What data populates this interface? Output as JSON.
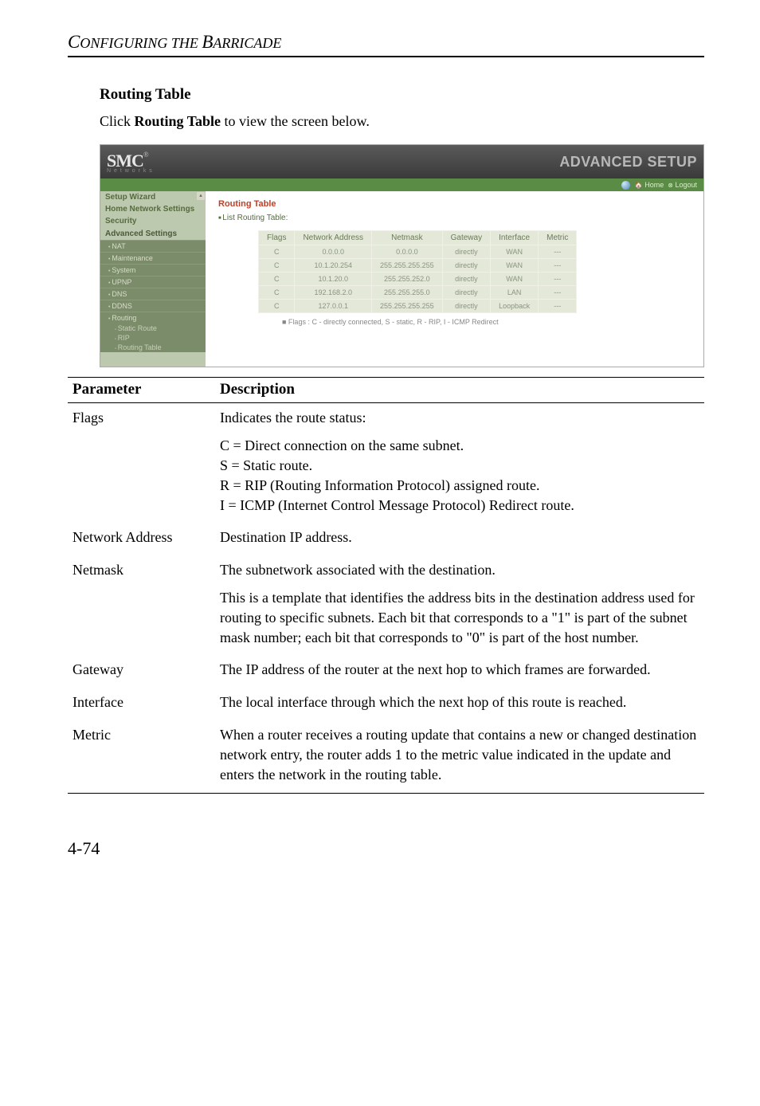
{
  "chapter_title_first": "C",
  "chapter_title_rest": "ONFIGURING THE ",
  "chapter_title_first2": "B",
  "chapter_title_rest2": "ARRICADE",
  "section_title": "Routing Table",
  "intro_prefix": "Click ",
  "intro_bold": "Routing Table",
  "intro_suffix": " to view the screen below.",
  "screenshot": {
    "logo": "SMC",
    "logo_reg": "®",
    "logo_sub": "N e t w o r k s",
    "adv": "ADVANCED SETUP",
    "top_home": "Home",
    "top_logout": "Logout",
    "sidebar": {
      "setup_wizard": "Setup Wizard",
      "home_net": "Home Network Settings",
      "security": "Security",
      "adv_settings": "Advanced Settings",
      "nat": "NAT",
      "maint": "Maintenance",
      "system": "System",
      "upnp": "UPNP",
      "dns": "DNS",
      "ddns": "DDNS",
      "routing": "Routing",
      "static_route": "Static Route",
      "rip": "RIP",
      "routing_table": "Routing Table"
    },
    "main": {
      "title": "Routing Table",
      "bullet": "List Routing Table:",
      "headers": [
        "Flags",
        "Network Address",
        "Netmask",
        "Gateway",
        "Interface",
        "Metric"
      ],
      "rows": [
        [
          "C",
          "0.0.0.0",
          "0.0.0.0",
          "directly",
          "WAN",
          "---"
        ],
        [
          "C",
          "10.1.20.254",
          "255.255.255.255",
          "directly",
          "WAN",
          "---"
        ],
        [
          "C",
          "10.1.20.0",
          "255.255.252.0",
          "directly",
          "WAN",
          "---"
        ],
        [
          "C",
          "192.168.2.0",
          "255.255.255.0",
          "directly",
          "LAN",
          "---"
        ],
        [
          "C",
          "127.0.0.1",
          "255.255.255.255",
          "directly",
          "Loopback",
          "---"
        ]
      ],
      "note": "■ Flags :  C - directly connected, S - static, R - RIP, I - ICMP Redirect"
    }
  },
  "ptable": {
    "h1": "Parameter",
    "h2": "Description",
    "rows": [
      {
        "param": "Flags",
        "desc1": "Indicates the route status:",
        "desc2": "C = Direct connection on the same subnet.\nS = Static route.\nR = RIP (Routing Information Protocol) assigned route.\nI = ICMP (Internet Control Message Protocol) Redirect route."
      },
      {
        "param": "Network Address",
        "desc1": "Destination IP address."
      },
      {
        "param": "Netmask",
        "desc1": "The subnetwork associated with the destination.",
        "desc2": "This is a template that identifies the address bits in the destination address used for routing to specific subnets. Each bit that corresponds to a \"1\" is part of the subnet mask number; each bit that corresponds to \"0\" is part of the host number."
      },
      {
        "param": "Gateway",
        "desc1": "The IP address of the router at the next hop to which frames are forwarded."
      },
      {
        "param": "Interface",
        "desc1": "The local interface through which the next hop of this route is reached."
      },
      {
        "param": "Metric",
        "desc1": "When a router receives a routing update that contains a new or changed destination network entry, the router adds 1 to the metric value indicated in the update and enters the network in the routing table."
      }
    ]
  },
  "page_num": "4-74"
}
